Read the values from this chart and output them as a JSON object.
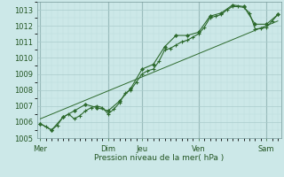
{
  "bg_color": "#cce8e8",
  "grid_major_color": "#aacccc",
  "grid_minor_color": "#bbdddd",
  "line_color": "#2d6a2d",
  "xlabel": "Pression niveau de la mer( hPa )",
  "ylim": [
    1005,
    1013.5
  ],
  "yticks": [
    1005,
    1006,
    1007,
    1008,
    1009,
    1010,
    1011,
    1012,
    1013
  ],
  "day_labels": [
    "Mer",
    "",
    "Dim",
    "Jeu",
    "",
    "Ven",
    "",
    "Sam"
  ],
  "day_positions": [
    0,
    3.5,
    6,
    9,
    12,
    14,
    17,
    20
  ],
  "day_vline_positions": [
    0,
    6,
    9,
    14,
    20
  ],
  "xlim": [
    -0.3,
    21.3
  ],
  "series1_x": [
    0,
    0.5,
    1,
    1.5,
    2,
    2.5,
    3,
    3.5,
    4,
    4.5,
    5,
    5.5,
    6,
    6.5,
    7,
    7.5,
    8,
    8.5,
    9,
    9.5,
    10,
    10.5,
    11,
    11.5,
    12,
    12.5,
    13,
    13.5,
    14,
    14.5,
    15,
    15.5,
    16,
    16.5,
    17,
    17.5,
    18,
    18.5,
    19,
    19.5,
    20,
    20.5,
    21
  ],
  "series1_y": [
    1005.9,
    1005.7,
    1005.5,
    1005.8,
    1006.3,
    1006.5,
    1006.2,
    1006.4,
    1006.7,
    1006.9,
    1007.0,
    1006.9,
    1006.5,
    1006.8,
    1007.2,
    1007.8,
    1008.0,
    1008.5,
    1009.0,
    1009.2,
    1009.3,
    1009.8,
    1010.5,
    1010.6,
    1010.8,
    1011.0,
    1011.1,
    1011.3,
    1011.5,
    1011.9,
    1012.5,
    1012.6,
    1012.7,
    1013.0,
    1013.2,
    1013.2,
    1013.15,
    1012.8,
    1011.8,
    1011.85,
    1011.9,
    1012.3,
    1012.7
  ],
  "series2_x": [
    0,
    1,
    2,
    3,
    4,
    5,
    6,
    7,
    8,
    9,
    10,
    11,
    12,
    13,
    14,
    15,
    16,
    17,
    18,
    19,
    20,
    21
  ],
  "series2_y": [
    1005.9,
    1005.5,
    1006.3,
    1006.7,
    1007.1,
    1006.9,
    1006.7,
    1007.3,
    1008.1,
    1009.3,
    1009.6,
    1010.7,
    1011.4,
    1011.4,
    1011.6,
    1012.6,
    1012.8,
    1013.3,
    1013.2,
    1012.1,
    1012.1,
    1012.7
  ],
  "trend_x": [
    0,
    21
  ],
  "trend_y": [
    1006.2,
    1012.3
  ]
}
